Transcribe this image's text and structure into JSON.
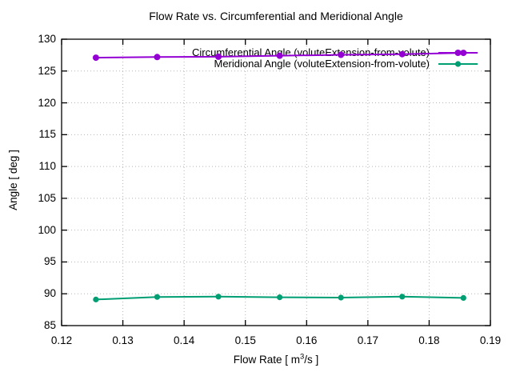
{
  "chart_data": {
    "type": "line",
    "title": "Flow Rate vs. Circumferential and Meridional Angle",
    "xlabel": {
      "prefix": "Flow Rate [ m",
      "sup": "3",
      "suffix": "/s ]"
    },
    "ylabel": "Angle [ deg ]",
    "xlim": [
      0.12,
      0.19
    ],
    "ylim": [
      85,
      130
    ],
    "xticks": [
      "0.12",
      "0.13",
      "0.14",
      "0.15",
      "0.16",
      "0.17",
      "0.18",
      "0.19"
    ],
    "yticks": [
      "85",
      "90",
      "95",
      "100",
      "105",
      "110",
      "115",
      "120",
      "125",
      "130"
    ],
    "grid": "dotted",
    "legend_position": "top-right-inside",
    "x": [
      0.1256,
      0.1356,
      0.1456,
      0.1556,
      0.1656,
      0.1756,
      0.1856
    ],
    "series": [
      {
        "name": "Circumferential Angle (voluteExtension-from-volute)",
        "color": "#9400d3",
        "marker": "circle",
        "marker_radius": 4,
        "values": [
          127.1,
          127.2,
          127.25,
          127.4,
          127.55,
          127.65,
          127.85
        ]
      },
      {
        "name": "Meridional Angle (voluteExtension-from-volute)",
        "color": "#009e73",
        "marker": "circle",
        "marker_radius": 3.6,
        "values": [
          89.1,
          89.5,
          89.55,
          89.45,
          89.4,
          89.55,
          89.35
        ]
      }
    ],
    "colors": {
      "background": "#ffffff",
      "axis": "#000000",
      "grid": "#b5b5b5",
      "text": "#000000"
    }
  }
}
